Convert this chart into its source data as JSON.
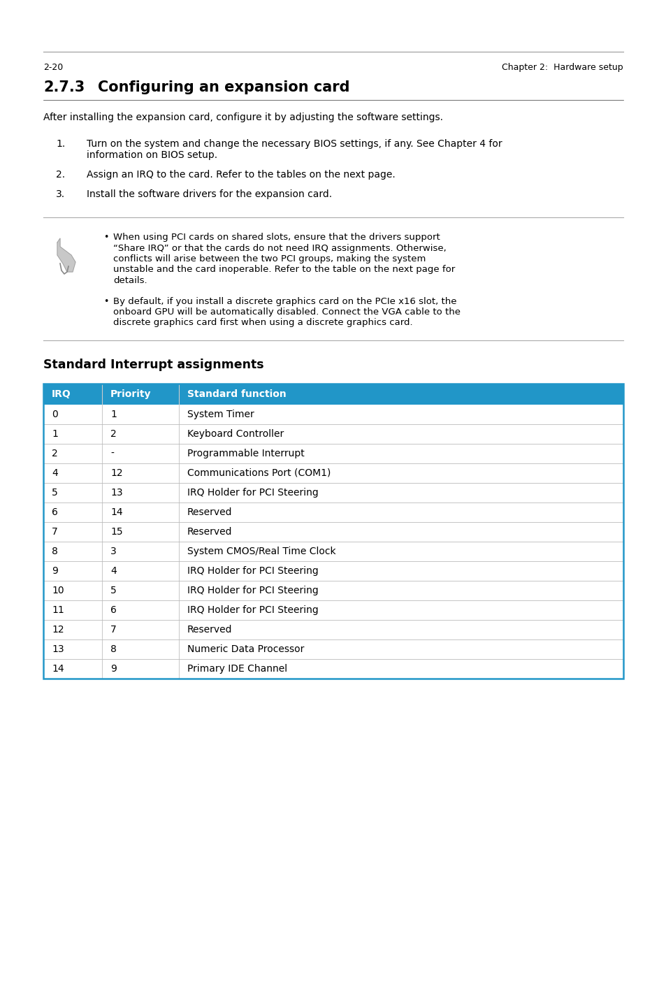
{
  "title_num": "2.7.3",
  "title_text": "Configuring an expansion card",
  "intro": "After installing the expansion card, configure it by adjusting the software settings.",
  "steps": [
    "Turn on the system and change the necessary BIOS settings, if any. See Chapter 4 for\ninformation on BIOS setup.",
    "Assign an IRQ to the card. Refer to the tables on the next page.",
    "Install the software drivers for the expansion card."
  ],
  "note_bullet1_lines": [
    "When using PCI cards on shared slots, ensure that the drivers support",
    "“Share IRQ” or that the cards do not need IRQ assignments. Otherwise,",
    "conflicts will arise between the two PCI groups, making the system",
    "unstable and the card inoperable. Refer to the table on the next page for",
    "details."
  ],
  "note_bullet2_lines": [
    "By default, if you install a discrete graphics card on the PCIe x16 slot, the",
    "onboard GPU will be automatically disabled. Connect the VGA cable to the",
    "discrete graphics card first when using a discrete graphics card."
  ],
  "table_title": "Standard Interrupt assignments",
  "table_header": [
    "IRQ",
    "Priority",
    "Standard function"
  ],
  "table_header_bg": "#2196C8",
  "table_header_color": "#ffffff",
  "table_rows": [
    [
      "0",
      "1",
      "System Timer"
    ],
    [
      "1",
      "2",
      "Keyboard Controller"
    ],
    [
      "2",
      "-",
      "Programmable Interrupt"
    ],
    [
      "4",
      "12",
      "Communications Port (COM1)"
    ],
    [
      "5",
      "13",
      "IRQ Holder for PCI Steering"
    ],
    [
      "6",
      "14",
      "Reserved"
    ],
    [
      "7",
      "15",
      "Reserved"
    ],
    [
      "8",
      "3",
      "System CMOS/Real Time Clock"
    ],
    [
      "9",
      "4",
      "IRQ Holder for PCI Steering"
    ],
    [
      "10",
      "5",
      "IRQ Holder for PCI Steering"
    ],
    [
      "11",
      "6",
      "IRQ Holder for PCI Steering"
    ],
    [
      "12",
      "7",
      "Reserved"
    ],
    [
      "13",
      "8",
      "Numeric Data Processor"
    ],
    [
      "14",
      "9",
      "Primary IDE Channel"
    ]
  ],
  "table_border_color": "#2196C8",
  "table_row_line_color": "#bbbbbb",
  "footer_left": "2-20",
  "footer_right": "Chapter 2:  Hardware setup",
  "footer_line_color": "#999999",
  "bg_color": "#ffffff",
  "text_color": "#000000"
}
